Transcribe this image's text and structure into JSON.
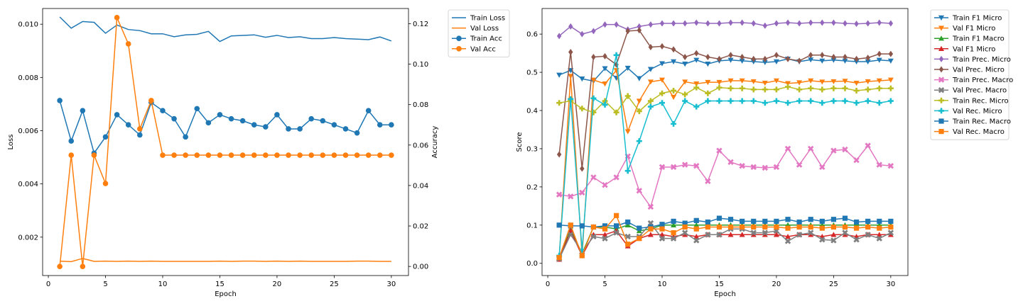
{
  "chart_data": [
    {
      "type": "line",
      "xlabel": "Epoch",
      "ylabel": "Loss",
      "y2label": "Accuracy",
      "xlim": [
        -0.5,
        31.5
      ],
      "ylim": [
        0.000557,
        0.01059
      ],
      "y2lim": [
        -0.0045,
        0.1275
      ],
      "xticks": [
        "0",
        "5",
        "10",
        "15",
        "20",
        "25",
        "30"
      ],
      "yticks": [
        "0.002",
        "0.004",
        "0.006",
        "0.008",
        "0.010"
      ],
      "y2ticks": [
        "0.00",
        "0.02",
        "0.04",
        "0.06",
        "0.08",
        "0.10",
        "0.12"
      ],
      "legend_position": "outside-right-top",
      "x": [
        1,
        2,
        3,
        4,
        5,
        6,
        7,
        8,
        9,
        10,
        11,
        12,
        13,
        14,
        15,
        16,
        17,
        18,
        19,
        20,
        21,
        22,
        23,
        24,
        25,
        26,
        27,
        28,
        29,
        30
      ],
      "series": [
        {
          "name": "Train Loss",
          "axis": "left",
          "color": "#1f77b4",
          "marker": "none",
          "values": [
            0.01027,
            0.00985,
            0.0101,
            0.01007,
            0.00966,
            0.00997,
            0.0098,
            0.00976,
            0.00964,
            0.00964,
            0.00953,
            0.0096,
            0.00962,
            0.00973,
            0.00935,
            0.00956,
            0.00958,
            0.0096,
            0.00951,
            0.00958,
            0.0095,
            0.00953,
            0.00946,
            0.00946,
            0.0095,
            0.00946,
            0.00944,
            0.00942,
            0.00952,
            0.00937
          ]
        },
        {
          "name": "Val Loss",
          "axis": "left",
          "color": "#ff7f0e",
          "marker": "none",
          "values": [
            0.0011,
            0.00108,
            0.0012,
            0.00109,
            0.0011,
            0.00109,
            0.0011,
            0.00109,
            0.0011,
            0.00109,
            0.00109,
            0.00109,
            0.00109,
            0.00109,
            0.0011,
            0.00109,
            0.0011,
            0.0011,
            0.00109,
            0.0011,
            0.00109,
            0.0011,
            0.00109,
            0.00109,
            0.00109,
            0.00109,
            0.0011,
            0.0011,
            0.00109,
            0.00109
          ]
        },
        {
          "name": "Train Acc",
          "axis": "right",
          "color": "#1f77b4",
          "marker": "circle",
          "values": [
            0.082,
            0.062,
            0.077,
            0.056,
            0.064,
            0.075,
            0.07,
            0.065,
            0.081,
            0.077,
            0.073,
            0.064,
            0.078,
            0.071,
            0.075,
            0.073,
            0.072,
            0.07,
            0.069,
            0.075,
            0.068,
            0.068,
            0.073,
            0.072,
            0.07,
            0.068,
            0.066,
            0.077,
            0.07,
            0.07
          ]
        },
        {
          "name": "Val Acc",
          "axis": "right",
          "color": "#ff7f0e",
          "marker": "circle",
          "values": [
            0.0,
            0.055,
            0.0,
            0.055,
            0.041,
            0.123,
            0.11,
            0.068,
            0.082,
            0.055,
            0.055,
            0.055,
            0.055,
            0.055,
            0.055,
            0.055,
            0.055,
            0.055,
            0.055,
            0.055,
            0.055,
            0.055,
            0.055,
            0.055,
            0.055,
            0.055,
            0.055,
            0.055,
            0.055,
            0.055
          ]
        }
      ]
    },
    {
      "type": "line",
      "xlabel": "Epoch",
      "ylabel": "Score",
      "xlim": [
        -0.5,
        31.5
      ],
      "ylim": [
        -0.032,
        0.667
      ],
      "xticks": [
        "0",
        "5",
        "10",
        "15",
        "20",
        "25",
        "30"
      ],
      "yticks": [
        "0.0",
        "0.1",
        "0.2",
        "0.3",
        "0.4",
        "0.5",
        "0.6"
      ],
      "legend_position": "outside-right-top",
      "x": [
        1,
        2,
        3,
        4,
        5,
        6,
        7,
        8,
        9,
        10,
        11,
        12,
        13,
        14,
        15,
        16,
        17,
        18,
        19,
        20,
        21,
        22,
        23,
        24,
        25,
        26,
        27,
        28,
        29,
        30
      ],
      "series": [
        {
          "name": "Train F1 Micro",
          "color": "#1f77b4",
          "marker": "tri-down",
          "values": [
            0.493,
            0.505,
            0.483,
            0.477,
            0.51,
            0.485,
            0.511,
            0.484,
            0.508,
            0.523,
            0.528,
            0.522,
            0.532,
            0.522,
            0.53,
            0.532,
            0.53,
            0.528,
            0.526,
            0.528,
            0.535,
            0.528,
            0.533,
            0.53,
            0.532,
            0.53,
            0.528,
            0.528,
            0.532,
            0.53
          ]
        },
        {
          "name": "Val F1 Micro",
          "color": "#ff7f0e",
          "marker": "tri-down",
          "values": [
            0.015,
            0.49,
            0.02,
            0.48,
            0.47,
            0.505,
            0.345,
            0.425,
            0.475,
            0.48,
            0.435,
            0.475,
            0.47,
            0.474,
            0.474,
            0.478,
            0.478,
            0.476,
            0.472,
            0.478,
            0.471,
            0.473,
            0.478,
            0.475,
            0.476,
            0.477,
            0.472,
            0.476,
            0.478,
            0.48
          ]
        },
        {
          "name": "Train F1 Macro",
          "color": "#2ca02c",
          "marker": "tri-up",
          "values": [
            0.015,
            0.09,
            0.025,
            0.095,
            0.095,
            0.09,
            0.1,
            0.085,
            0.09,
            0.1,
            0.1,
            0.1,
            0.1,
            0.1,
            0.1,
            0.1,
            0.1,
            0.1,
            0.1,
            0.1,
            0.1,
            0.1,
            0.1,
            0.1,
            0.1,
            0.1,
            0.1,
            0.1,
            0.1,
            0.1
          ]
        },
        {
          "name": "Val F1 Micro",
          "color": "#d62728",
          "marker": "tri-up",
          "values": [
            0.01,
            0.085,
            0.02,
            0.075,
            0.075,
            0.085,
            0.045,
            0.065,
            0.075,
            0.075,
            0.07,
            0.075,
            0.07,
            0.075,
            0.075,
            0.075,
            0.075,
            0.075,
            0.075,
            0.075,
            0.07,
            0.075,
            0.075,
            0.07,
            0.075,
            0.075,
            0.07,
            0.075,
            0.075,
            0.075
          ]
        },
        {
          "name": "Train Prec. Micro",
          "color": "#9467bd",
          "marker": "diamond",
          "values": [
            0.595,
            0.62,
            0.6,
            0.608,
            0.625,
            0.625,
            0.612,
            0.62,
            0.625,
            0.628,
            0.628,
            0.628,
            0.63,
            0.628,
            0.628,
            0.63,
            0.63,
            0.628,
            0.622,
            0.628,
            0.63,
            0.628,
            0.63,
            0.63,
            0.63,
            0.628,
            0.627,
            0.628,
            0.63,
            0.628
          ]
        },
        {
          "name": "Val Prec. Micro",
          "color": "#8c564b",
          "marker": "diamond",
          "values": [
            0.285,
            0.553,
            0.248,
            0.54,
            0.542,
            0.52,
            0.608,
            0.61,
            0.566,
            0.568,
            0.56,
            0.54,
            0.55,
            0.54,
            0.535,
            0.545,
            0.54,
            0.535,
            0.535,
            0.545,
            0.535,
            0.53,
            0.545,
            0.545,
            0.54,
            0.54,
            0.535,
            0.538,
            0.548,
            0.548
          ]
        },
        {
          "name": "Train Prec. Macro",
          "color": "#e377c2",
          "marker": "plus-x",
          "values": [
            0.18,
            0.175,
            0.185,
            0.225,
            0.205,
            0.225,
            0.28,
            0.19,
            0.148,
            0.252,
            0.252,
            0.258,
            0.255,
            0.215,
            0.295,
            0.265,
            0.255,
            0.252,
            0.25,
            0.252,
            0.3,
            0.258,
            0.3,
            0.252,
            0.295,
            0.298,
            0.27,
            0.308,
            0.258,
            0.255
          ]
        },
        {
          "name": "Val Prec. Macro",
          "color": "#7f7f7f",
          "marker": "x",
          "values": [
            0.012,
            0.075,
            0.03,
            0.07,
            0.065,
            0.08,
            0.07,
            0.07,
            0.105,
            0.065,
            0.065,
            0.08,
            0.06,
            0.075,
            0.075,
            0.09,
            0.09,
            0.08,
            0.08,
            0.085,
            0.058,
            0.075,
            0.08,
            0.062,
            0.06,
            0.08,
            0.062,
            0.075,
            0.065,
            0.08
          ]
        },
        {
          "name": "Train Rec. Micro",
          "color": "#bcbd22",
          "marker": "plus",
          "values": [
            0.42,
            0.425,
            0.405,
            0.395,
            0.425,
            0.395,
            0.438,
            0.398,
            0.425,
            0.445,
            0.452,
            0.442,
            0.46,
            0.445,
            0.46,
            0.458,
            0.458,
            0.455,
            0.455,
            0.455,
            0.462,
            0.455,
            0.458,
            0.455,
            0.458,
            0.458,
            0.452,
            0.455,
            0.458,
            0.458
          ]
        },
        {
          "name": "Val Rec. Micro",
          "color": "#17becf",
          "marker": "plus",
          "values": [
            0.02,
            0.43,
            0.035,
            0.432,
            0.415,
            0.545,
            0.242,
            0.32,
            0.41,
            0.42,
            0.365,
            0.425,
            0.41,
            0.425,
            0.425,
            0.425,
            0.425,
            0.425,
            0.42,
            0.425,
            0.42,
            0.425,
            0.425,
            0.42,
            0.425,
            0.425,
            0.42,
            0.425,
            0.42,
            0.425
          ]
        },
        {
          "name": "Train Rec. Macro",
          "color": "#1f77b4",
          "marker": "square",
          "values": [
            0.1,
            0.098,
            0.098,
            0.095,
            0.098,
            0.098,
            0.108,
            0.092,
            0.095,
            0.102,
            0.11,
            0.105,
            0.112,
            0.108,
            0.118,
            0.115,
            0.11,
            0.11,
            0.11,
            0.11,
            0.115,
            0.108,
            0.115,
            0.11,
            0.115,
            0.118,
            0.108,
            0.11,
            0.11,
            0.11
          ]
        },
        {
          "name": "Val Rec. Macro",
          "color": "#ff7f0e",
          "marker": "square",
          "values": [
            0.015,
            0.1,
            0.02,
            0.095,
            0.09,
            0.125,
            0.05,
            0.065,
            0.09,
            0.09,
            0.08,
            0.095,
            0.09,
            0.095,
            0.095,
            0.095,
            0.095,
            0.095,
            0.095,
            0.095,
            0.092,
            0.095,
            0.095,
            0.092,
            0.095,
            0.095,
            0.092,
            0.095,
            0.092,
            0.095
          ]
        }
      ]
    }
  ]
}
